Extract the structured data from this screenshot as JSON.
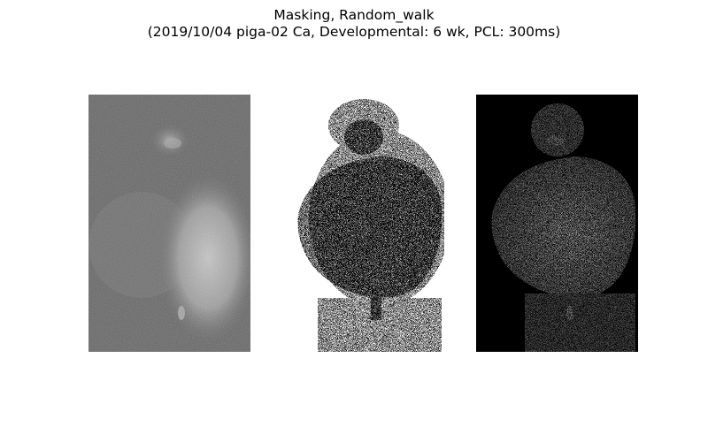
{
  "figure": {
    "title_line1": "Masking, Random_walk",
    "title_line2": "(2019/10/04 piga-02 Ca, Developmental: 6 wk, PCL: 300ms)"
  },
  "panels": [
    {
      "name": "raw-image",
      "style": "grayscale"
    },
    {
      "name": "binary-mask",
      "style": "binary"
    },
    {
      "name": "masked-image",
      "style": "grayscale-on-black"
    }
  ],
  "colors": {
    "background": "#ffffff",
    "raw_base": "#5a5a5a",
    "tissue_light": "#b4b4b4",
    "mask_foreground": "#000000",
    "mask_background": "#ffffff",
    "masked_background": "#000000"
  }
}
